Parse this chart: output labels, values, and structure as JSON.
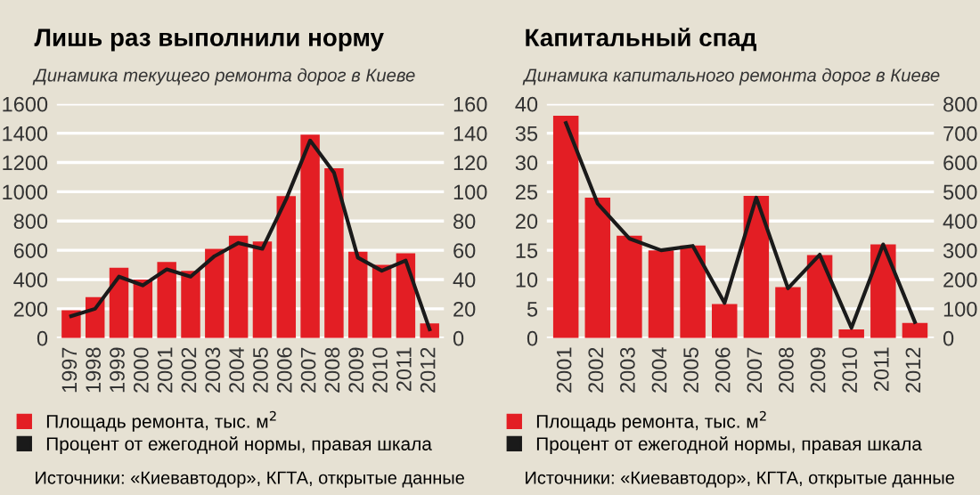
{
  "chart_data": [
    {
      "type": "bar",
      "title": "Лишь раз выполнили норму",
      "subtitle": "Динамика текущего ремонта дорог в Киеве",
      "categories": [
        "1997",
        "1998",
        "1999",
        "2000",
        "2001",
        "2002",
        "2003",
        "2004",
        "2005",
        "2006",
        "2007",
        "2008",
        "2009",
        "2010",
        "2011",
        "2012"
      ],
      "series": [
        {
          "name": "Площадь ремонта, тыс. м$^{2}$",
          "color": "#e31e24",
          "values": [
            190,
            280,
            480,
            400,
            520,
            460,
            610,
            700,
            660,
            970,
            1390,
            1160,
            590,
            500,
            580,
            100
          ]
        },
        {
          "name": "Процент от ежегодной нормы, правая шкала",
          "color": "#1a1a1a",
          "type": "line",
          "axis": "y2",
          "values": [
            15,
            20,
            42,
            36,
            47,
            42,
            56,
            65,
            61,
            95,
            135,
            113,
            55,
            46,
            53,
            6
          ]
        }
      ],
      "ylim": [
        0,
        1600
      ],
      "yticks": [
        0,
        200,
        400,
        600,
        800,
        1000,
        1200,
        1400,
        1600
      ],
      "y2lim": [
        0,
        160
      ],
      "y2ticks": [
        0,
        20,
        40,
        60,
        80,
        100,
        120,
        140,
        160
      ],
      "grid": "y",
      "legend": "bottom",
      "marker": "none",
      "line_style": "solid",
      "annotations": [
        "Источники: «Киевавтодор», КГТА, открытые данные"
      ]
    },
    {
      "type": "bar",
      "title": "Капитальный спад",
      "subtitle": "Динамика капитального ремонта дорог в Киеве",
      "categories": [
        "2001",
        "2002",
        "2003",
        "2004",
        "2005",
        "2006",
        "2007",
        "2008",
        "2009",
        "2010",
        "2011",
        "2012"
      ],
      "series": [
        {
          "name": "Площадь ремонта, тыс. м$^{2}$",
          "color": "#e31e24",
          "values": [
            38,
            24,
            17.5,
            15,
            15.8,
            5.8,
            24.3,
            8.7,
            14.2,
            1.5,
            16,
            2.6
          ]
        },
        {
          "name": "Процент от ежегодной нормы, правая шкала",
          "color": "#1a1a1a",
          "type": "line",
          "axis": "y2",
          "values": [
            735,
            460,
            340,
            300,
            315,
            120,
            480,
            170,
            285,
            35,
            320,
            55
          ]
        }
      ],
      "ylim": [
        0,
        40
      ],
      "yticks": [
        0,
        5,
        10,
        15,
        20,
        25,
        30,
        35,
        40
      ],
      "y2lim": [
        0,
        800
      ],
      "y2ticks": [
        0,
        100,
        200,
        300,
        400,
        500,
        600,
        700,
        800
      ],
      "grid": "y",
      "legend": "bottom",
      "marker": "none",
      "line_style": "solid",
      "annotations": [
        "Источники: «Киевавтодор», КГТА, открытые данные"
      ]
    }
  ]
}
